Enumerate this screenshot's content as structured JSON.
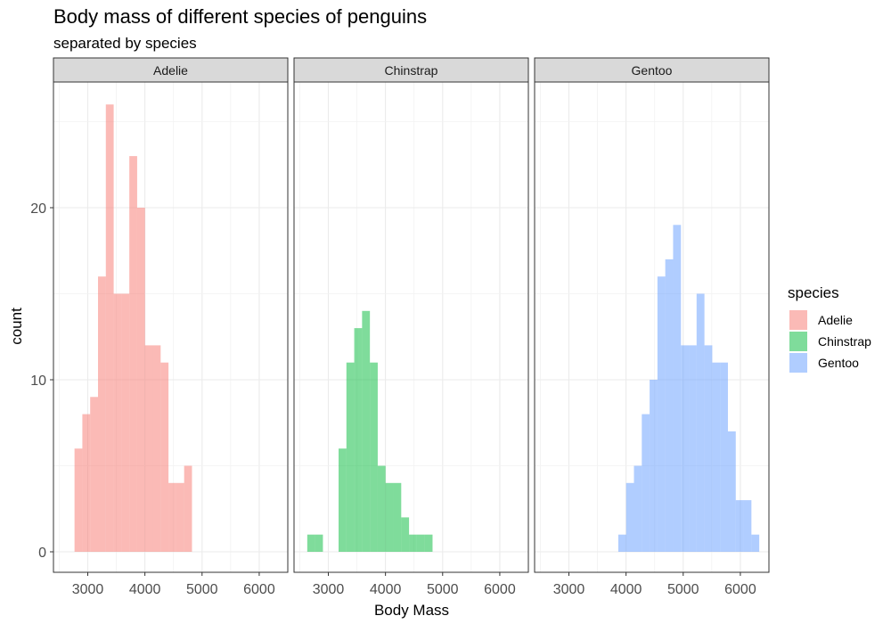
{
  "chart_data": {
    "type": "bar",
    "title": "Body mass of different species of penguins",
    "subtitle": "separated by species",
    "xlabel": "Body Mass",
    "ylabel": "count",
    "bin_width": 137,
    "xlim": [
      2400,
      6500
    ],
    "ylim": [
      0,
      28
    ],
    "x_ticks": [
      3000,
      4000,
      5000,
      6000
    ],
    "y_ticks": [
      0,
      10,
      20
    ],
    "grid": true,
    "legend": {
      "title": "species",
      "position": "right",
      "entries": [
        {
          "label": "Adelie",
          "color": "#F8766D"
        },
        {
          "label": "Chinstrap",
          "color": "#00BA38"
        },
        {
          "label": "Gentoo",
          "color": "#619CFF"
        }
      ]
    },
    "fill_alpha": 0.5,
    "panels": [
      {
        "name": "Adelie",
        "color": "#F8766D",
        "bins": [
          {
            "x": 2837,
            "count": 6
          },
          {
            "x": 2974,
            "count": 8
          },
          {
            "x": 3111,
            "count": 9
          },
          {
            "x": 3248,
            "count": 16
          },
          {
            "x": 3385,
            "count": 26
          },
          {
            "x": 3522,
            "count": 15
          },
          {
            "x": 3659,
            "count": 15
          },
          {
            "x": 3796,
            "count": 23
          },
          {
            "x": 3933,
            "count": 20
          },
          {
            "x": 4070,
            "count": 12
          },
          {
            "x": 4207,
            "count": 12
          },
          {
            "x": 4344,
            "count": 11
          },
          {
            "x": 4481,
            "count": 4
          },
          {
            "x": 4618,
            "count": 4
          },
          {
            "x": 4755,
            "count": 5
          }
        ]
      },
      {
        "name": "Chinstrap",
        "color": "#00BA38",
        "bins": [
          {
            "x": 2700,
            "count": 1
          },
          {
            "x": 2837,
            "count": 1
          },
          {
            "x": 3248,
            "count": 6
          },
          {
            "x": 3385,
            "count": 11
          },
          {
            "x": 3522,
            "count": 13
          },
          {
            "x": 3659,
            "count": 14
          },
          {
            "x": 3796,
            "count": 11
          },
          {
            "x": 3933,
            "count": 5
          },
          {
            "x": 4070,
            "count": 4
          },
          {
            "x": 4207,
            "count": 4
          },
          {
            "x": 4344,
            "count": 2
          },
          {
            "x": 4481,
            "count": 1
          },
          {
            "x": 4618,
            "count": 1
          },
          {
            "x": 4755,
            "count": 1
          }
        ]
      },
      {
        "name": "Gentoo",
        "color": "#619CFF",
        "bins": [
          {
            "x": 3933,
            "count": 1
          },
          {
            "x": 4070,
            "count": 4
          },
          {
            "x": 4207,
            "count": 5
          },
          {
            "x": 4344,
            "count": 8
          },
          {
            "x": 4481,
            "count": 10
          },
          {
            "x": 4618,
            "count": 16
          },
          {
            "x": 4755,
            "count": 17
          },
          {
            "x": 4892,
            "count": 19
          },
          {
            "x": 5029,
            "count": 12
          },
          {
            "x": 5166,
            "count": 12
          },
          {
            "x": 5303,
            "count": 15
          },
          {
            "x": 5440,
            "count": 12
          },
          {
            "x": 5577,
            "count": 11
          },
          {
            "x": 5714,
            "count": 11
          },
          {
            "x": 5851,
            "count": 7
          },
          {
            "x": 5988,
            "count": 3
          },
          {
            "x": 6125,
            "count": 3
          },
          {
            "x": 6262,
            "count": 1
          }
        ]
      }
    ]
  }
}
